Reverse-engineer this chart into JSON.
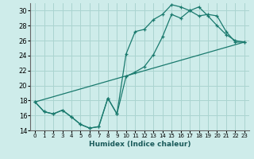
{
  "xlabel": "Humidex (Indice chaleur)",
  "ylabel": "",
  "bg_color": "#ceecea",
  "grid_color": "#aad4d0",
  "line_color": "#1a7a6e",
  "xlim": [
    -0.5,
    23.5
  ],
  "ylim": [
    14,
    31
  ],
  "xticks": [
    0,
    1,
    2,
    3,
    4,
    5,
    6,
    7,
    8,
    9,
    10,
    11,
    12,
    13,
    14,
    15,
    16,
    17,
    18,
    19,
    20,
    21,
    22,
    23
  ],
  "yticks": [
    14,
    16,
    18,
    20,
    22,
    24,
    26,
    28,
    30
  ],
  "series1_x": [
    0,
    1,
    2,
    3,
    4,
    5,
    6,
    7,
    8,
    9,
    10,
    11,
    12,
    13,
    14,
    15,
    16,
    17,
    18,
    19,
    20,
    21,
    22,
    23
  ],
  "series1_y": [
    17.8,
    16.5,
    16.2,
    16.7,
    15.8,
    14.8,
    14.3,
    14.5,
    18.3,
    16.2,
    24.2,
    27.2,
    27.5,
    28.8,
    29.5,
    30.8,
    30.5,
    30.0,
    30.5,
    29.3,
    28.0,
    26.8,
    26.0,
    25.8
  ],
  "series2_x": [
    0,
    1,
    2,
    3,
    4,
    5,
    6,
    7,
    8,
    9,
    10,
    11,
    12,
    13,
    14,
    15,
    16,
    17,
    18,
    19,
    20,
    21,
    22,
    23
  ],
  "series2_y": [
    17.8,
    16.5,
    16.2,
    16.7,
    15.8,
    14.8,
    14.3,
    14.5,
    18.3,
    16.2,
    21.2,
    21.8,
    22.5,
    24.1,
    26.5,
    29.5,
    29.0,
    30.0,
    29.3,
    29.5,
    29.3,
    27.2,
    25.8,
    25.8
  ],
  "series3_x": [
    0,
    23
  ],
  "series3_y": [
    17.8,
    25.8
  ]
}
